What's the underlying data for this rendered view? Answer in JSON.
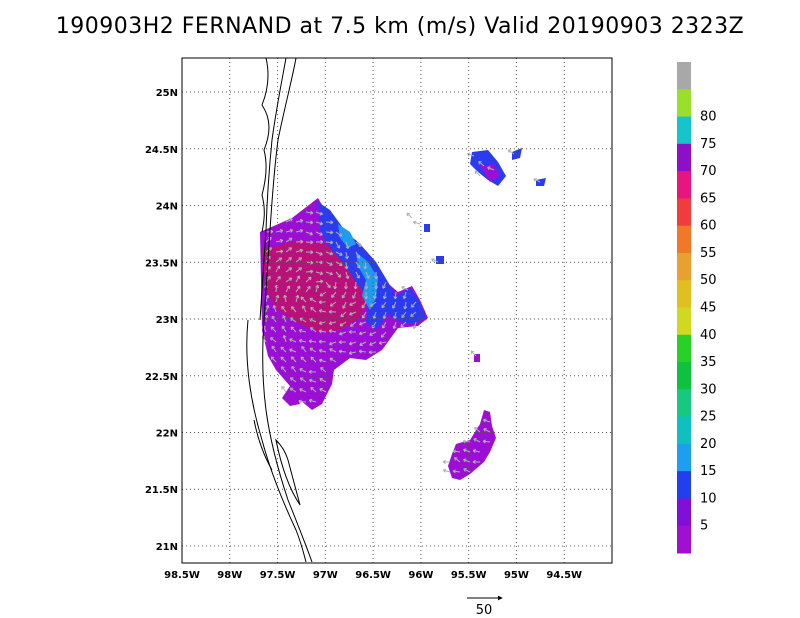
{
  "title": "190903H2 FERNAND at 7.5 km (m/s) Valid 20190903 2323Z",
  "map": {
    "lon_range": [
      -98.5,
      -94.0
    ],
    "lat_range": [
      20.85,
      25.3
    ],
    "lon_ticks": [
      {
        "value": -98.5,
        "label": "98.5W"
      },
      {
        "value": -98.0,
        "label": "98W"
      },
      {
        "value": -97.5,
        "label": "97.5W"
      },
      {
        "value": -97.0,
        "label": "97W"
      },
      {
        "value": -96.5,
        "label": "96.5W"
      },
      {
        "value": -96.0,
        "label": "96W"
      },
      {
        "value": -95.5,
        "label": "95.5W"
      },
      {
        "value": -95.0,
        "label": "95W"
      },
      {
        "value": -94.5,
        "label": "94.5W"
      }
    ],
    "lat_ticks": [
      {
        "value": 21.0,
        "label": "21N"
      },
      {
        "value": 21.5,
        "label": "21.5N"
      },
      {
        "value": 22.0,
        "label": "22N"
      },
      {
        "value": 22.5,
        "label": "22.5N"
      },
      {
        "value": 23.0,
        "label": "23N"
      },
      {
        "value": 23.5,
        "label": "23.5N"
      },
      {
        "value": 24.0,
        "label": "24N"
      },
      {
        "value": 24.5,
        "label": "24.5N"
      },
      {
        "value": 25.0,
        "label": "25N"
      }
    ],
    "grid": "dotted",
    "colors": {
      "main_purple": "#9a0fd3",
      "magenta": "#b8127a",
      "blue": "#2b3bf0",
      "light_blue": "#1f9bf0",
      "gray_arrow": "#b0b0b0"
    }
  },
  "colorbar": {
    "levels": [
      {
        "label": "",
        "color": "#a8a8a8"
      },
      {
        "label": "80",
        "color": "#9bde2c"
      },
      {
        "label": "75",
        "color": "#16c4cc"
      },
      {
        "label": "70",
        "color": "#8c10c8"
      },
      {
        "label": "65",
        "color": "#e81480"
      },
      {
        "label": "60",
        "color": "#f03c3c"
      },
      {
        "label": "55",
        "color": "#f07828"
      },
      {
        "label": "50",
        "color": "#e8a030"
      },
      {
        "label": "45",
        "color": "#e0c020"
      },
      {
        "label": "40",
        "color": "#d0d820"
      },
      {
        "label": "35",
        "color": "#28d028"
      },
      {
        "label": "30",
        "color": "#10c040"
      },
      {
        "label": "25",
        "color": "#18c880"
      },
      {
        "label": "20",
        "color": "#10c0c0"
      },
      {
        "label": "15",
        "color": "#1e9ef0"
      },
      {
        "label": "10",
        "color": "#2040f0"
      },
      {
        "label": "5",
        "color": "#8010d8"
      },
      {
        "label": "",
        "color": "#a010d0"
      }
    ]
  },
  "reference_vector": {
    "label": "50"
  }
}
